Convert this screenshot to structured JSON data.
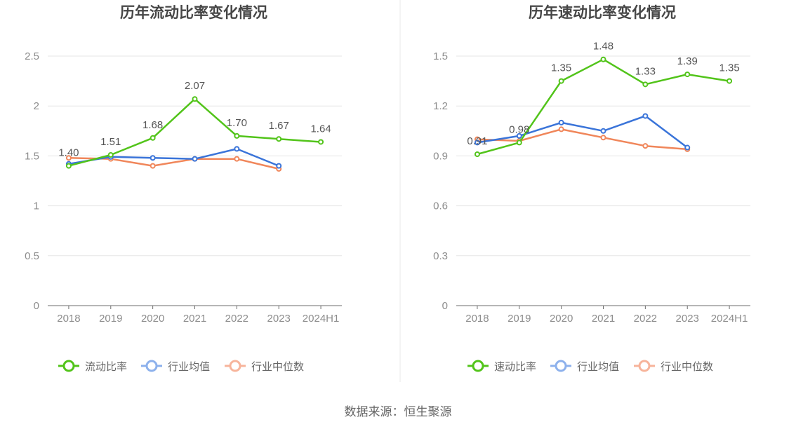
{
  "source_label": "数据来源：恒生聚源",
  "colors": {
    "primary": "#52c41a",
    "industry_avg": "#3a74d9",
    "industry_median": "#f0865a",
    "legend_avg": "#8db1ec",
    "legend_median": "#f7b49b"
  },
  "chart_data": [
    {
      "type": "line",
      "title": "历年流动比率变化情况",
      "categories": [
        "2018",
        "2019",
        "2020",
        "2021",
        "2022",
        "2023",
        "2024H1"
      ],
      "ylim": [
        0,
        2.5
      ],
      "yticks": [
        0,
        0.5,
        1,
        1.5,
        2,
        2.5
      ],
      "ytick_labels": [
        "0",
        "0.5",
        "1",
        "1.5",
        "2",
        "2.5"
      ],
      "series": [
        {
          "name": "流动比率",
          "values": [
            1.4,
            1.51,
            1.68,
            2.07,
            1.7,
            1.67,
            1.64
          ],
          "labels": [
            "1.40",
            "1.51",
            "1.68",
            "2.07",
            "1.70",
            "1.67",
            "1.64"
          ]
        },
        {
          "name": "行业均值",
          "values": [
            1.42,
            1.49,
            1.48,
            1.47,
            1.57,
            1.4,
            null
          ]
        },
        {
          "name": "行业中位数",
          "values": [
            1.48,
            1.47,
            1.4,
            1.47,
            1.47,
            1.37,
            null
          ]
        }
      ]
    },
    {
      "type": "line",
      "title": "历年速动比率变化情况",
      "categories": [
        "2018",
        "2019",
        "2020",
        "2021",
        "2022",
        "2023",
        "2024H1"
      ],
      "ylim": [
        0,
        1.5
      ],
      "yticks": [
        0,
        0.3,
        0.6,
        0.9,
        1.2,
        1.5
      ],
      "ytick_labels": [
        "0",
        "0.3",
        "0.6",
        "0.9",
        "1.2",
        "1.5"
      ],
      "series": [
        {
          "name": "速动比率",
          "values": [
            0.91,
            0.98,
            1.35,
            1.48,
            1.33,
            1.39,
            1.35
          ],
          "labels": [
            "0.91",
            "0.98",
            "1.35",
            "1.48",
            "1.33",
            "1.39",
            "1.35"
          ]
        },
        {
          "name": "行业均值",
          "values": [
            0.98,
            1.02,
            1.1,
            1.05,
            1.14,
            0.95,
            null
          ]
        },
        {
          "name": "行业中位数",
          "values": [
            1.0,
            0.99,
            1.06,
            1.01,
            0.96,
            0.94,
            null
          ]
        }
      ]
    }
  ]
}
